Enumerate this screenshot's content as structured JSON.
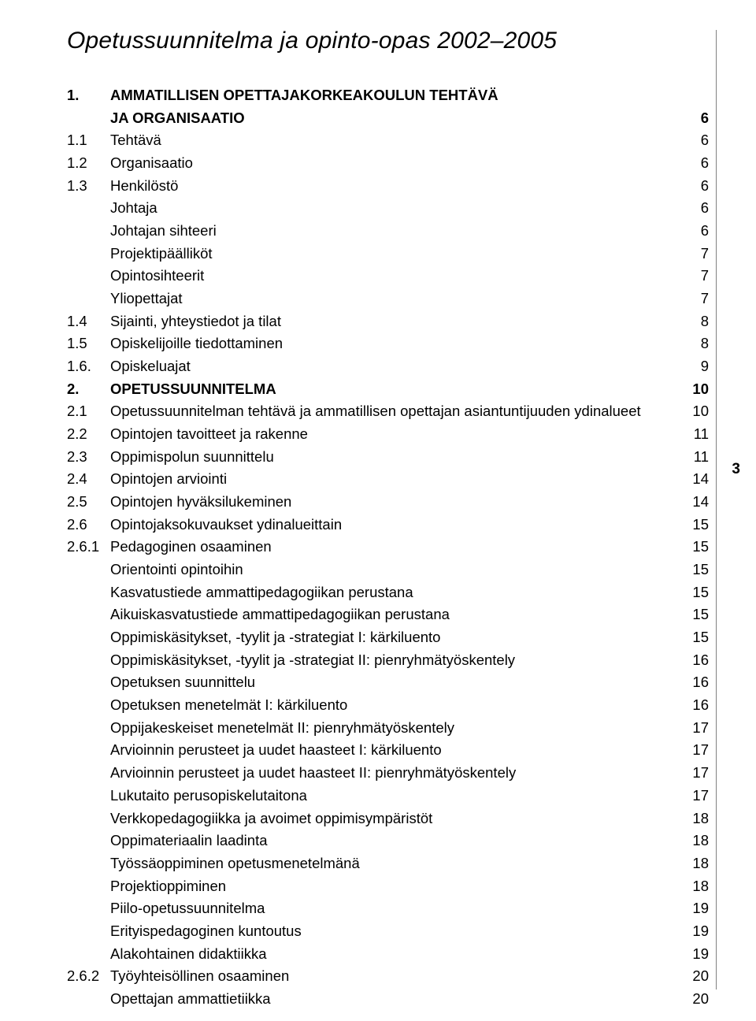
{
  "title": "Opetussuunnitelma ja opinto-opas 2002–2005",
  "side_page_number": "3",
  "entries": [
    {
      "num": "1.",
      "label": "AMMATILLISEN OPETTAJAKORKEAKOULUN TEHTÄVÄ",
      "page": "",
      "bold": true,
      "indent": 0
    },
    {
      "num": "",
      "label": "JA ORGANISAATIO",
      "page": "6",
      "bold": true,
      "indent": 1
    },
    {
      "num": "1.1",
      "label": "Tehtävä",
      "page": "6",
      "bold": false,
      "indent": 0
    },
    {
      "num": "1.2",
      "label": "Organisaatio",
      "page": "6",
      "bold": false,
      "indent": 0
    },
    {
      "num": "1.3",
      "label": "Henkilöstö",
      "page": "6",
      "bold": false,
      "indent": 0
    },
    {
      "num": "",
      "label": "Johtaja",
      "page": "6",
      "bold": false,
      "indent": 1
    },
    {
      "num": "",
      "label": "Johtajan sihteeri",
      "page": "6",
      "bold": false,
      "indent": 1
    },
    {
      "num": "",
      "label": "Projektipäälliköt",
      "page": "7",
      "bold": false,
      "indent": 1
    },
    {
      "num": "",
      "label": "Opintosihteerit",
      "page": "7",
      "bold": false,
      "indent": 1
    },
    {
      "num": "",
      "label": "Yliopettajat",
      "page": "7",
      "bold": false,
      "indent": 1
    },
    {
      "num": "1.4",
      "label": "Sijainti, yhteystiedot ja tilat",
      "page": "8",
      "bold": false,
      "indent": 0
    },
    {
      "num": "1.5",
      "label": "Opiskelijoille tiedottaminen",
      "page": "8",
      "bold": false,
      "indent": 0
    },
    {
      "num": "1.6.",
      "label": "Opiskeluajat",
      "page": "9",
      "bold": false,
      "indent": 0
    },
    {
      "num": "2.",
      "label": "OPETUSSUUNNITELMA",
      "page": "10",
      "bold": true,
      "indent": 0
    },
    {
      "num": "2.1",
      "label": "Opetussuunnitelman tehtävä ja ammatillisen opettajan asiantuntijuuden ydinalueet",
      "page": "10",
      "bold": false,
      "indent": 0
    },
    {
      "num": "2.2",
      "label": "Opintojen tavoitteet ja rakenne",
      "page": "11",
      "bold": false,
      "indent": 0
    },
    {
      "num": "2.3",
      "label": "Oppimispolun suunnittelu",
      "page": "11",
      "bold": false,
      "indent": 0
    },
    {
      "num": "2.4",
      "label": "Opintojen arviointi",
      "page": "14",
      "bold": false,
      "indent": 0
    },
    {
      "num": "2.5",
      "label": "Opintojen hyväksilukeminen",
      "page": "14",
      "bold": false,
      "indent": 0
    },
    {
      "num": "2.6",
      "label": "Opintojaksokuvaukset ydinalueittain",
      "page": "15",
      "bold": false,
      "indent": 0
    },
    {
      "num": "2.6.1",
      "label": "Pedagoginen osaaminen",
      "page": "15",
      "bold": false,
      "indent": 0
    },
    {
      "num": "",
      "label": "Orientointi opintoihin",
      "page": "15",
      "bold": false,
      "indent": 1
    },
    {
      "num": "",
      "label": "Kasvatustiede ammattipedagogiikan perustana",
      "page": "15",
      "bold": false,
      "indent": 1
    },
    {
      "num": "",
      "label": "Aikuiskasvatustiede ammattipedagogiikan perustana",
      "page": "15",
      "bold": false,
      "indent": 1
    },
    {
      "num": "",
      "label": "Oppimiskäsitykset, -tyylit ja -strategiat I: kärkiluento",
      "page": "15",
      "bold": false,
      "indent": 1
    },
    {
      "num": "",
      "label": "Oppimiskäsitykset, -tyylit ja -strategiat II: pienryhmätyöskentely",
      "page": "16",
      "bold": false,
      "indent": 1
    },
    {
      "num": "",
      "label": "Opetuksen suunnittelu",
      "page": "16",
      "bold": false,
      "indent": 1
    },
    {
      "num": "",
      "label": "Opetuksen menetelmät I: kärkiluento",
      "page": "16",
      "bold": false,
      "indent": 1
    },
    {
      "num": "",
      "label": "Oppijakeskeiset menetelmät II: pienryhmätyöskentely",
      "page": "17",
      "bold": false,
      "indent": 1
    },
    {
      "num": "",
      "label": "Arvioinnin perusteet ja uudet haasteet I: kärkiluento",
      "page": "17",
      "bold": false,
      "indent": 1
    },
    {
      "num": "",
      "label": "Arvioinnin perusteet ja uudet haasteet II: pienryhmätyöskentely",
      "page": "17",
      "bold": false,
      "indent": 1
    },
    {
      "num": "",
      "label": "Lukutaito perusopiskelutaitona",
      "page": "17",
      "bold": false,
      "indent": 1
    },
    {
      "num": "",
      "label": "Verkkopedagogiikka ja avoimet oppimisympäristöt",
      "page": "18",
      "bold": false,
      "indent": 1
    },
    {
      "num": "",
      "label": "Oppimateriaalin laadinta",
      "page": "18",
      "bold": false,
      "indent": 1
    },
    {
      "num": "",
      "label": "Työssäoppiminen opetusmenetelmänä",
      "page": "18",
      "bold": false,
      "indent": 1
    },
    {
      "num": "",
      "label": "Projektioppiminen",
      "page": "18",
      "bold": false,
      "indent": 1
    },
    {
      "num": "",
      "label": "Piilo-opetussuunnitelma",
      "page": "19",
      "bold": false,
      "indent": 1
    },
    {
      "num": "",
      "label": "Erityispedagoginen kuntoutus",
      "page": "19",
      "bold": false,
      "indent": 1
    },
    {
      "num": "",
      "label": "Alakohtainen didaktiikka",
      "page": "19",
      "bold": false,
      "indent": 1
    },
    {
      "num": "2.6.2",
      "label": "Työyhteisöllinen osaaminen",
      "page": "20",
      "bold": false,
      "indent": 0
    },
    {
      "num": "",
      "label": "Opettajan ammattietiikka",
      "page": "20",
      "bold": false,
      "indent": 1
    }
  ]
}
